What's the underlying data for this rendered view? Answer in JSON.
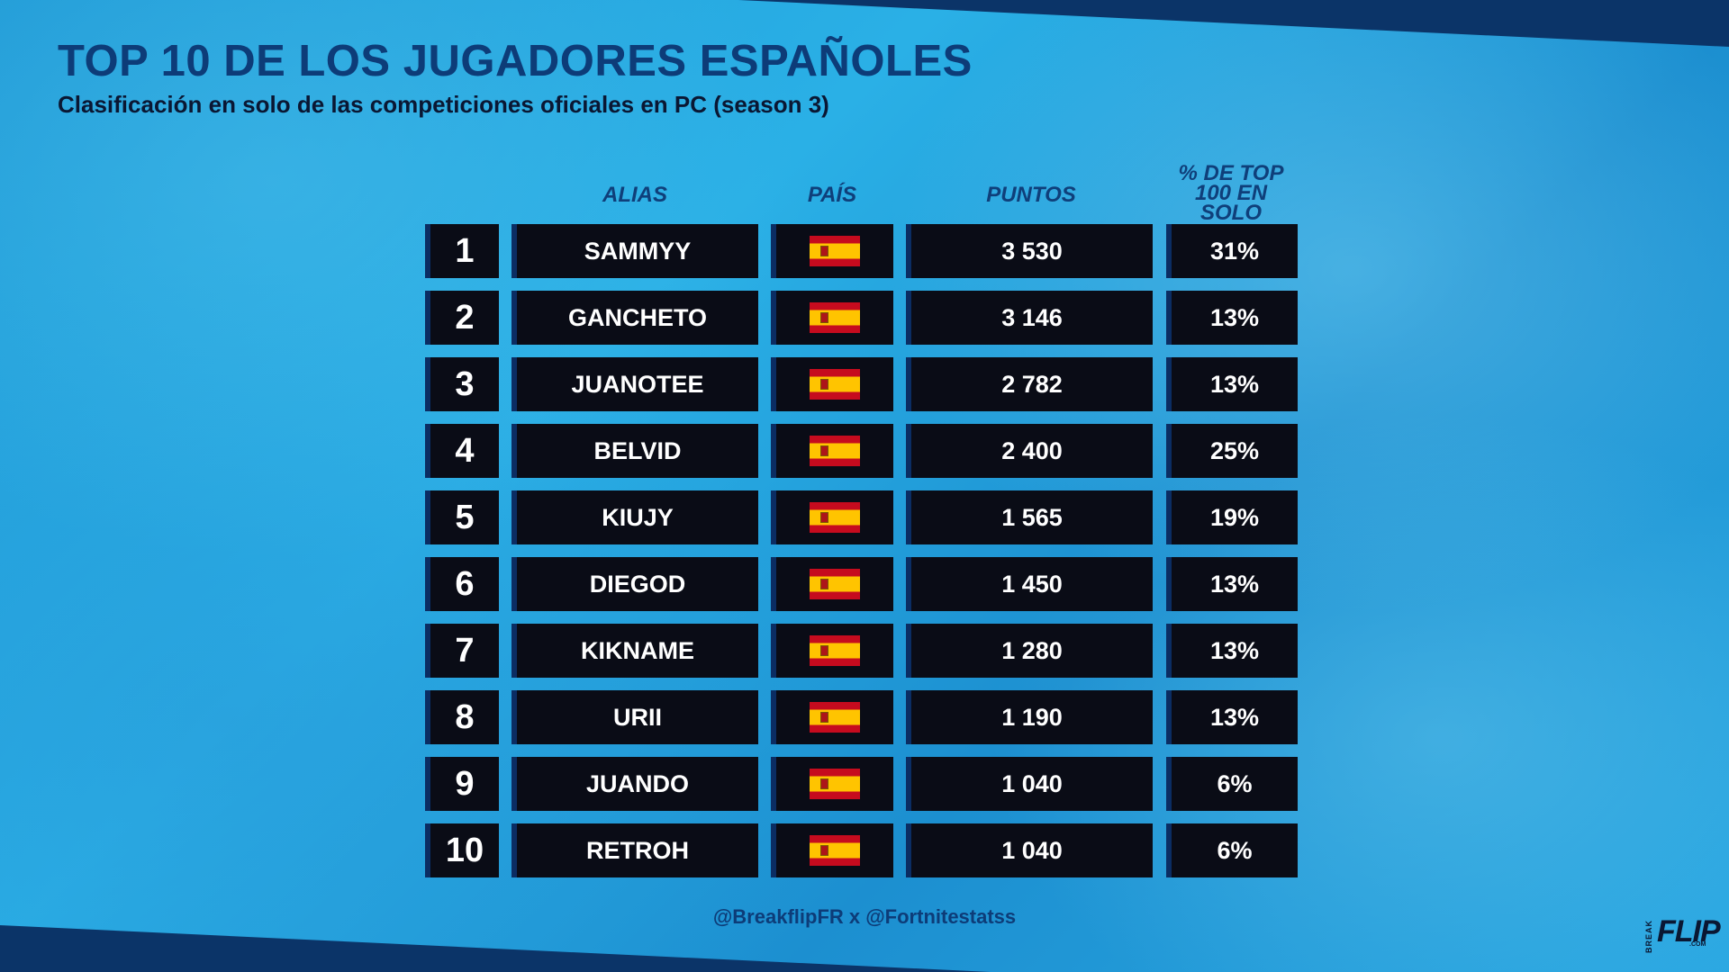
{
  "header": {
    "title": "TOP 10 DE LOS JUGADORES ESPAÑOLES",
    "subtitle": "Clasificación en solo de las competiciones oficiales en PC (season 3)"
  },
  "columns": {
    "alias": "ALIAS",
    "country": "PAÍS",
    "points": "PUNTOS",
    "pct_line1": "% DE TOP",
    "pct_line2": "100 EN SOLO"
  },
  "players": [
    {
      "rank": "1",
      "alias": "SAMMYY",
      "flag": "spain-flag-icon",
      "points": "3 530",
      "pct": "31%"
    },
    {
      "rank": "2",
      "alias": "GANCHETO",
      "flag": "spain-flag-icon",
      "points": "3 146",
      "pct": "13%"
    },
    {
      "rank": "3",
      "alias": "JUANOTEE",
      "flag": "spain-flag-icon",
      "points": "2 782",
      "pct": "13%"
    },
    {
      "rank": "4",
      "alias": "BELVID",
      "flag": "spain-flag-icon",
      "points": "2 400",
      "pct": "25%"
    },
    {
      "rank": "5",
      "alias": "KIUJY",
      "flag": "spain-flag-icon",
      "points": "1 565",
      "pct": "19%"
    },
    {
      "rank": "6",
      "alias": "DIEGOD",
      "flag": "spain-flag-icon",
      "points": "1 450",
      "pct": "13%"
    },
    {
      "rank": "7",
      "alias": "KIKNAME",
      "flag": "spain-flag-icon",
      "points": "1 280",
      "pct": "13%"
    },
    {
      "rank": "8",
      "alias": "URII",
      "flag": "spain-flag-icon",
      "points": "1 190",
      "pct": "13%"
    },
    {
      "rank": "9",
      "alias": "JUANDO",
      "flag": "spain-flag-icon",
      "points": "1 040",
      "pct": "6%"
    },
    {
      "rank": "10",
      "alias": "RETROH",
      "flag": "spain-flag-icon",
      "points": "1 040",
      "pct": "6%"
    }
  ],
  "footer": {
    "credits": "@BreakflipFR x @Fortnitestatss"
  },
  "logo": {
    "side": "BREAK",
    "main": "FLIP",
    "suffix": ".COM"
  },
  "colors": {
    "title": "#0d3c78",
    "cell_bg": "#0a0c16",
    "cell_accent": "#0b2d63",
    "band": "#0b3468",
    "flag_red": "#c60b1e",
    "flag_yellow": "#ffc400"
  }
}
